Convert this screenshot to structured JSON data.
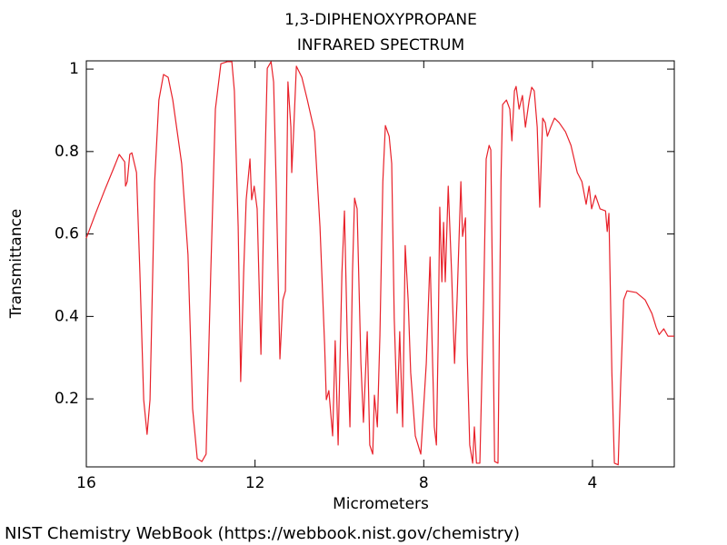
{
  "chart_data": {
    "type": "line",
    "title": "1,3-DIPHENOXYPROPANE",
    "subtitle": "INFRARED SPECTRUM",
    "x_label": "Micrometers",
    "y_label": "Transmittance",
    "source": "NIST Chemistry WebBook (https://webbook.nist.gov/chemistry)",
    "color": "#e8212a",
    "xlim": [
      16,
      2.06
    ],
    "ylim": [
      0.035,
      1.02
    ],
    "xticks": [
      16,
      12,
      8,
      4
    ],
    "yticks": [
      0.2,
      0.4,
      0.6,
      0.8,
      1
    ],
    "x": [
      16.0,
      15.78,
      15.57,
      15.35,
      15.22,
      15.09,
      15.07,
      15.03,
      14.97,
      14.92,
      14.81,
      14.73,
      14.64,
      14.56,
      14.49,
      14.38,
      14.28,
      14.17,
      14.06,
      13.95,
      13.74,
      13.59,
      13.48,
      13.37,
      13.26,
      13.16,
      13.05,
      12.94,
      12.81,
      12.66,
      12.55,
      12.49,
      12.4,
      12.34,
      12.27,
      12.21,
      12.12,
      12.08,
      12.02,
      11.95,
      11.86,
      11.8,
      11.71,
      11.62,
      11.56,
      11.5,
      11.41,
      11.34,
      11.28,
      11.22,
      11.15,
      11.13,
      11.09,
      11.02,
      10.89,
      10.76,
      10.59,
      10.46,
      10.35,
      10.31,
      10.25,
      10.16,
      10.1,
      10.03,
      9.94,
      9.88,
      9.81,
      9.75,
      9.69,
      9.64,
      9.58,
      9.49,
      9.43,
      9.34,
      9.28,
      9.21,
      9.17,
      9.1,
      9.04,
      8.97,
      8.91,
      8.82,
      8.76,
      8.7,
      8.63,
      8.57,
      8.5,
      8.44,
      8.37,
      8.31,
      8.2,
      8.07,
      7.94,
      7.85,
      7.79,
      7.75,
      7.7,
      7.66,
      7.62,
      7.57,
      7.53,
      7.49,
      7.42,
      7.34,
      7.27,
      7.21,
      7.12,
      7.08,
      7.01,
      6.97,
      6.91,
      6.84,
      6.8,
      6.75,
      6.67,
      6.58,
      6.52,
      6.45,
      6.41,
      6.32,
      6.24,
      6.17,
      6.13,
      6.04,
      5.96,
      5.91,
      5.85,
      5.81,
      5.74,
      5.66,
      5.59,
      5.5,
      5.44,
      5.38,
      5.31,
      5.25,
      5.18,
      5.12,
      5.07,
      4.99,
      4.9,
      4.79,
      4.64,
      4.51,
      4.36,
      4.25,
      4.15,
      4.08,
      4.02,
      3.93,
      3.82,
      3.69,
      3.65,
      3.61,
      3.54,
      3.48,
      3.39,
      3.33,
      3.26,
      3.18,
      2.96,
      2.75,
      2.59,
      2.49,
      2.42,
      2.31,
      2.21,
      2.06
    ],
    "values": [
      0.59,
      0.65,
      0.705,
      0.76,
      0.793,
      0.775,
      0.716,
      0.727,
      0.793,
      0.797,
      0.749,
      0.506,
      0.198,
      0.114,
      0.198,
      0.727,
      0.925,
      0.987,
      0.98,
      0.925,
      0.771,
      0.55,
      0.176,
      0.055,
      0.048,
      0.066,
      0.506,
      0.903,
      1.013,
      1.018,
      1.018,
      0.947,
      0.617,
      0.242,
      0.506,
      0.683,
      0.782,
      0.683,
      0.716,
      0.661,
      0.308,
      0.617,
      1.002,
      1.018,
      0.969,
      0.727,
      0.297,
      0.44,
      0.462,
      0.969,
      0.859,
      0.749,
      0.837,
      1.007,
      0.98,
      0.925,
      0.848,
      0.617,
      0.33,
      0.198,
      0.22,
      0.11,
      0.341,
      0.088,
      0.506,
      0.656,
      0.33,
      0.132,
      0.506,
      0.687,
      0.661,
      0.286,
      0.143,
      0.363,
      0.088,
      0.066,
      0.209,
      0.132,
      0.352,
      0.727,
      0.863,
      0.837,
      0.771,
      0.396,
      0.165,
      0.363,
      0.132,
      0.572,
      0.44,
      0.264,
      0.11,
      0.066,
      0.286,
      0.544,
      0.286,
      0.132,
      0.088,
      0.33,
      0.665,
      0.484,
      0.628,
      0.484,
      0.716,
      0.506,
      0.286,
      0.44,
      0.727,
      0.594,
      0.639,
      0.308,
      0.088,
      0.044,
      0.132,
      0.044,
      0.044,
      0.44,
      0.782,
      0.815,
      0.804,
      0.048,
      0.044,
      0.727,
      0.914,
      0.925,
      0.903,
      0.826,
      0.947,
      0.958,
      0.903,
      0.936,
      0.859,
      0.925,
      0.956,
      0.947,
      0.859,
      0.665,
      0.881,
      0.87,
      0.837,
      0.859,
      0.881,
      0.87,
      0.848,
      0.815,
      0.749,
      0.727,
      0.672,
      0.716,
      0.661,
      0.694,
      0.661,
      0.656,
      0.606,
      0.65,
      0.264,
      0.044,
      0.04,
      0.242,
      0.44,
      0.462,
      0.458,
      0.44,
      0.407,
      0.374,
      0.356,
      0.37,
      0.352,
      0.352
    ]
  }
}
